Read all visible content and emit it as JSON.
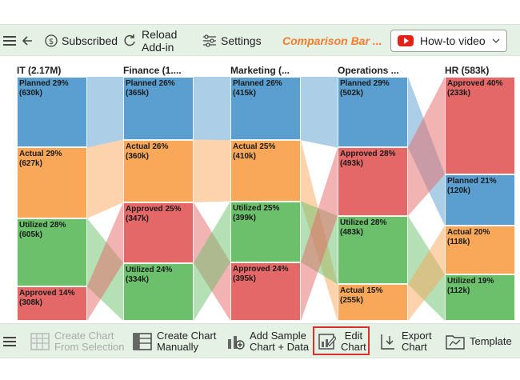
{
  "top_toolbar": {
    "subscribed_label": "Subscribed",
    "reload_label_line1": "Reload",
    "reload_label_line2": "Add-in",
    "settings_label": "Settings",
    "title": "Comparison Bar ...",
    "howto_label": "How-to video"
  },
  "bottom_toolbar": {
    "create_selection_line1": "Create Chart",
    "create_selection_line2": "From Selection",
    "create_manual_line1": "Create Chart",
    "create_manual_line2": "Manually",
    "add_sample_line1": "Add Sample",
    "add_sample_line2": "Chart + Data",
    "edit_line1": "Edit",
    "edit_line2": "Chart",
    "export_line1": "Export",
    "export_line2": "Chart",
    "template_label": "Template"
  },
  "colors": {
    "Planned": "#5a9fd0",
    "Actual": "#f9a85a",
    "Utilized": "#6cc06c",
    "Approved": "#e56868"
  },
  "chart_data": {
    "type": "bar",
    "columns": [
      {
        "title": "IT (2.17M)",
        "segments": [
          {
            "name": "Planned",
            "label": "Planned 29%",
            "value_label": "(630k)",
            "percent": 29
          },
          {
            "name": "Actual",
            "label": "Actual 29%",
            "value_label": "(627k)",
            "percent": 29
          },
          {
            "name": "Utilized",
            "label": "Utilized 28%",
            "value_label": "(605k)",
            "percent": 28
          },
          {
            "name": "Approved",
            "label": "Approved 14%",
            "value_label": "(308k)",
            "percent": 14
          }
        ]
      },
      {
        "title": "Finance (1....",
        "segments": [
          {
            "name": "Planned",
            "label": "Planned 26%",
            "value_label": "(365k)",
            "percent": 26
          },
          {
            "name": "Actual",
            "label": "Actual 26%",
            "value_label": "(360k)",
            "percent": 26
          },
          {
            "name": "Approved",
            "label": "Approved 25%",
            "value_label": "(347k)",
            "percent": 25
          },
          {
            "name": "Utilized",
            "label": "Utilized 24%",
            "value_label": "(334k)",
            "percent": 24
          }
        ]
      },
      {
        "title": "Marketing (...",
        "segments": [
          {
            "name": "Planned",
            "label": "Planned 26%",
            "value_label": "(415k)",
            "percent": 26
          },
          {
            "name": "Actual",
            "label": "Actual 25%",
            "value_label": "(410k)",
            "percent": 25
          },
          {
            "name": "Utilized",
            "label": "Utilized 25%",
            "value_label": "(399k)",
            "percent": 25
          },
          {
            "name": "Approved",
            "label": "Approved 24%",
            "value_label": "(395k)",
            "percent": 24
          }
        ]
      },
      {
        "title": "Operations ...",
        "segments": [
          {
            "name": "Planned",
            "label": "Planned 29%",
            "value_label": "(502k)",
            "percent": 29
          },
          {
            "name": "Approved",
            "label": "Approved 28%",
            "value_label": "(493k)",
            "percent": 28
          },
          {
            "name": "Utilized",
            "label": "Utilized 28%",
            "value_label": "(483k)",
            "percent": 28
          },
          {
            "name": "Actual",
            "label": "Actual 15%",
            "value_label": "(255k)",
            "percent": 15
          }
        ]
      },
      {
        "title": "HR (583k)",
        "segments": [
          {
            "name": "Approved",
            "label": "Approved 40%",
            "value_label": "(233k)",
            "percent": 40
          },
          {
            "name": "Planned",
            "label": "Planned 21%",
            "value_label": "(120k)",
            "percent": 21
          },
          {
            "name": "Actual",
            "label": "Actual 20%",
            "value_label": "(118k)",
            "percent": 20
          },
          {
            "name": "Utilized",
            "label": "Utilized 19%",
            "value_label": "(112k)",
            "percent": 19
          }
        ]
      }
    ]
  }
}
